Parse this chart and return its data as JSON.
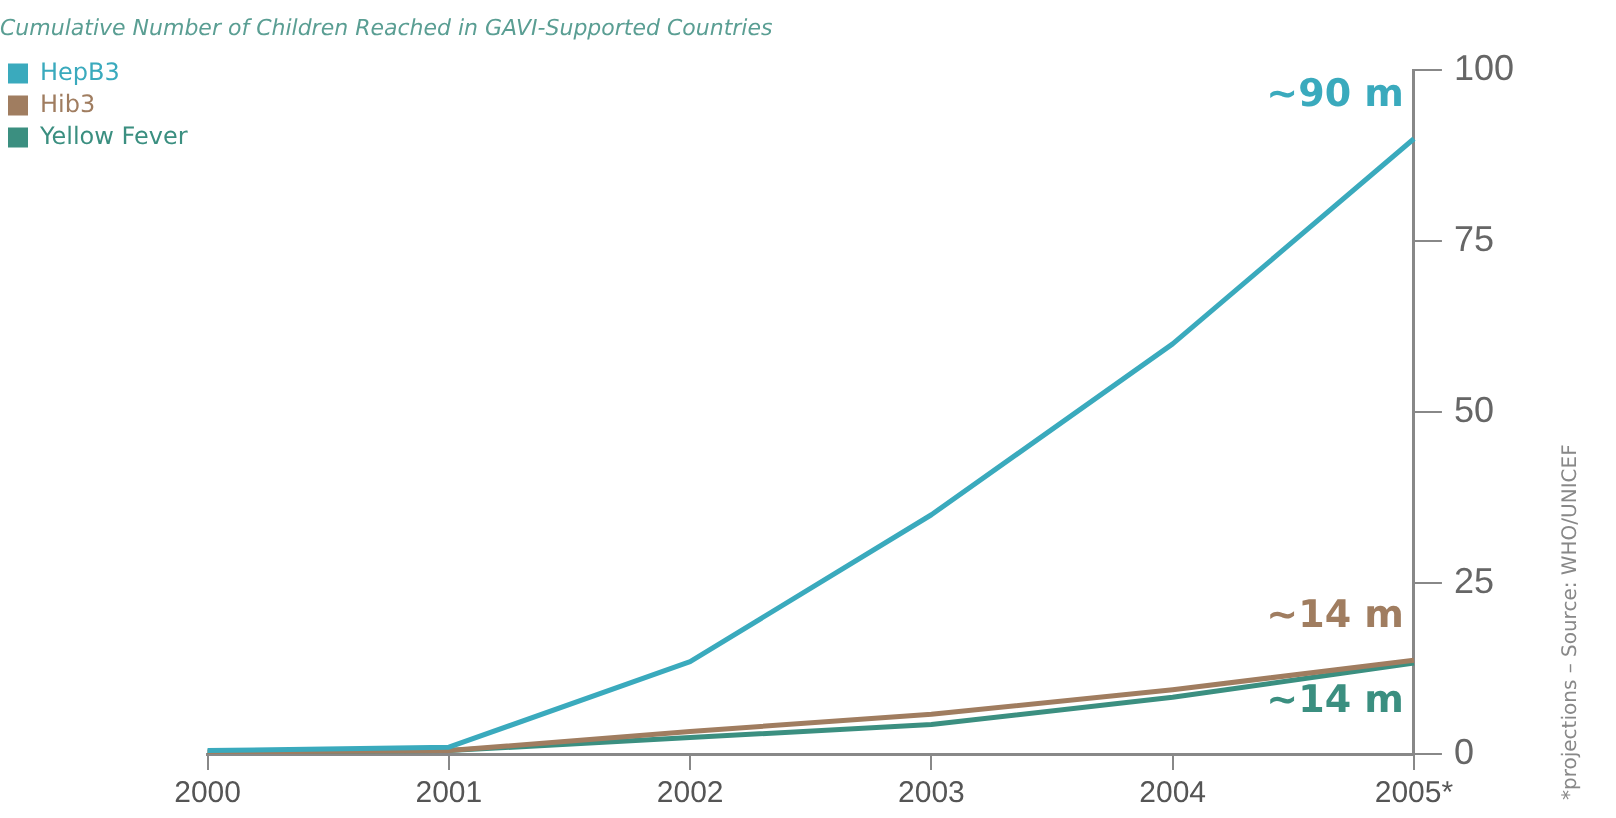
{
  "chart_data": {
    "type": "line",
    "title": "Cumulative Number of Children Reached in GAVI-Supported Countries",
    "categories": [
      "2000",
      "2001",
      "2002",
      "2003",
      "2004",
      "2005*"
    ],
    "series": [
      {
        "name": "HepB3",
        "color": "#3aaabd",
        "values": [
          0.5,
          1,
          13.5,
          35,
          60,
          90
        ]
      },
      {
        "name": "Hib3",
        "color": "#a07d60",
        "values": [
          0.3,
          0.5,
          3.3,
          5.8,
          9.4,
          13.7
        ]
      },
      {
        "name": "Yellow Fever",
        "color": "#3b8f80",
        "values": [
          0.3,
          0.5,
          2.4,
          4.3,
          8.3,
          13.3
        ]
      }
    ],
    "ylim": [
      0,
      100
    ],
    "yticks": [
      0,
      25,
      50,
      75,
      100
    ],
    "grid": false,
    "legend": "top left",
    "marker": "none",
    "line_style": "solid",
    "annotations": [
      {
        "text": "~90 m",
        "x": "2005*",
        "y": 90
      },
      {
        "text": "~14 m",
        "x": "2005*",
        "y": 13.7
      },
      {
        "text": "~14 m",
        "x": "2005*",
        "y": 13.3
      },
      "*projections – Source: WHO/UNICEF"
    ]
  }
}
